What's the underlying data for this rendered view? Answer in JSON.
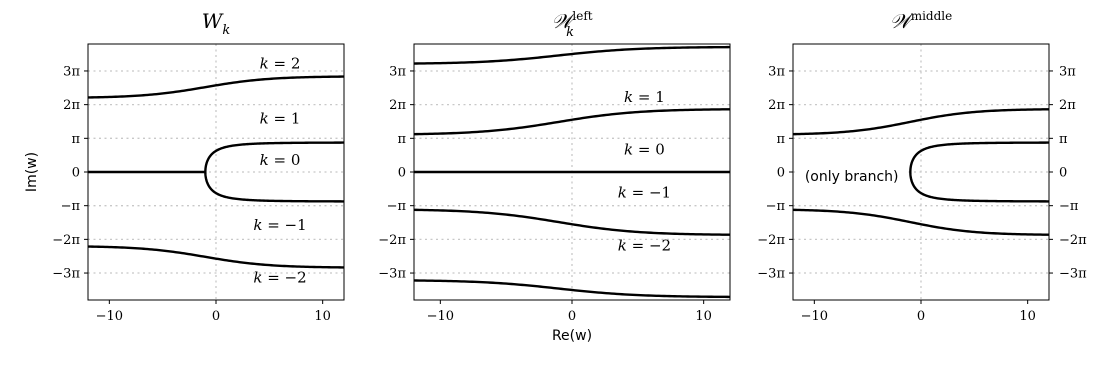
{
  "chart_data": [
    {
      "type": "line",
      "title": "W_k",
      "title_math": {
        "base": "W",
        "sub": "k",
        "sup": ""
      },
      "xlim": [
        -12,
        12
      ],
      "ylim": [
        -11.94,
        11.94
      ],
      "xticks": [
        -10,
        0,
        10
      ],
      "xtick_labels": [
        "−10",
        "0",
        "10"
      ],
      "yticks": [
        -9.4248,
        -6.2832,
        -3.1416,
        0,
        3.1416,
        6.2832,
        9.4248
      ],
      "ytick_labels": [
        "−3π",
        "−2π",
        "−π",
        "0",
        "π",
        "2π",
        "3π"
      ],
      "ytick_side": "left",
      "ylabel": "Im(w)",
      "xlabel": "",
      "grid": true,
      "series": [
        {
          "kind": "branch_cut",
          "center": 2,
          "scale": 0.9,
          "x": [
            -12,
            -8,
            -4,
            0,
            4,
            8,
            12
          ],
          "y": [
            6.93,
            7.19,
            7.51,
            7.95,
            8.36,
            8.68,
            8.9
          ]
        },
        {
          "kind": "branch_cut",
          "center": -2,
          "scale": 0.9,
          "x": [
            -12,
            -8,
            -4,
            0,
            4,
            8,
            12
          ],
          "y": [
            -6.93,
            -7.19,
            -7.51,
            -7.95,
            -8.36,
            -8.68,
            -8.9
          ]
        },
        {
          "kind": "half_line",
          "x": [
            -12,
            -1
          ],
          "y": [
            0,
            0
          ]
        },
        {
          "kind": "parabola_branch",
          "x": [
            -1,
            0,
            2,
            4,
            8,
            12
          ],
          "y": [
            0,
            1.4,
            2.05,
            2.3,
            2.6,
            2.75
          ]
        }
      ],
      "annotations": [
        {
          "text": "k = 2",
          "x": 6,
          "y": 10.1,
          "style": "math"
        },
        {
          "text": "k = 1",
          "x": 6,
          "y": 5.0,
          "style": "math"
        },
        {
          "text": "k = 0",
          "x": 6,
          "y": 1.1,
          "style": "math"
        },
        {
          "text": "k = −1",
          "x": 6,
          "y": -4.95,
          "style": "math"
        },
        {
          "text": "k = −2",
          "x": 6,
          "y": -9.85,
          "style": "math"
        }
      ]
    },
    {
      "type": "line",
      "title": "𝒲_k^left",
      "title_math": {
        "base": "𝒲",
        "sub": "k",
        "sup": "left"
      },
      "xlim": [
        -12,
        12
      ],
      "ylim": [
        -11.94,
        11.94
      ],
      "xticks": [
        -10,
        0,
        10
      ],
      "xtick_labels": [
        "−10",
        "0",
        "10"
      ],
      "yticks": [
        -9.4248,
        -6.2832,
        -3.1416,
        0,
        3.1416,
        6.2832,
        9.4248
      ],
      "ytick_labels": [
        "−3π",
        "−2π",
        "−π",
        "0",
        "π",
        "2π",
        "3π"
      ],
      "ytick_side": "left",
      "ylabel": "",
      "xlabel": "Re(w)",
      "grid": true,
      "series": [
        {
          "kind": "branch_cut",
          "center": 3,
          "scale": 0.75,
          "x": [
            -12,
            -8,
            -4,
            0,
            4,
            8,
            12
          ],
          "y": [
            10.1,
            10.35,
            10.6,
            10.9,
            11.2,
            11.45,
            11.65
          ]
        },
        {
          "kind": "branch_cut",
          "center": 1,
          "scale": 1.15,
          "x": [
            -12,
            -8,
            -4,
            0,
            4,
            8,
            12
          ],
          "y": [
            3.5,
            3.7,
            4.1,
            4.8,
            5.4,
            5.7,
            5.85
          ]
        },
        {
          "kind": "line",
          "x": [
            -12,
            12
          ],
          "y": [
            0,
            0
          ]
        },
        {
          "kind": "branch_cut",
          "center": -1,
          "scale": 1.15,
          "x": [
            -12,
            -8,
            -4,
            0,
            4,
            8,
            12
          ],
          "y": [
            -3.5,
            -3.7,
            -4.1,
            -4.8,
            -5.4,
            -5.7,
            -5.85
          ]
        },
        {
          "kind": "branch_cut",
          "center": -3,
          "scale": 0.75,
          "x": [
            -12,
            -8,
            -4,
            0,
            4,
            8,
            12
          ],
          "y": [
            -10.1,
            -10.35,
            -10.6,
            -10.9,
            -11.2,
            -11.45,
            -11.65
          ]
        }
      ],
      "annotations": [
        {
          "text": "k = 1",
          "x": 5.5,
          "y": 7.0,
          "style": "math"
        },
        {
          "text": "k = 0",
          "x": 5.5,
          "y": 2.1,
          "style": "math"
        },
        {
          "text": "k = −1",
          "x": 5.5,
          "y": -1.9,
          "style": "math"
        },
        {
          "text": "k = −2",
          "x": 5.5,
          "y": -6.85,
          "style": "math"
        }
      ]
    },
    {
      "type": "line",
      "title": "𝒲^middle",
      "title_math": {
        "base": "𝒲",
        "sub": "",
        "sup": "middle"
      },
      "xlim": [
        -12,
        12
      ],
      "ylim": [
        -11.94,
        11.94
      ],
      "xticks": [
        -10,
        0,
        10
      ],
      "xtick_labels": [
        "−10",
        "0",
        "10"
      ],
      "yticks": [
        -9.4248,
        -6.2832,
        -3.1416,
        0,
        3.1416,
        6.2832,
        9.4248
      ],
      "ytick_labels": [
        "−3π",
        "−2π",
        "−π",
        "0",
        "π",
        "2π",
        "3π"
      ],
      "ytick_side": "both",
      "ylabel": "",
      "xlabel": "",
      "grid": true,
      "series": [
        {
          "kind": "branch_cut",
          "center": 1,
          "scale": 1.15,
          "x": [
            -12,
            -8,
            -4,
            0,
            4,
            8,
            12
          ],
          "y": [
            3.5,
            3.7,
            4.1,
            4.8,
            5.4,
            5.7,
            5.85
          ]
        },
        {
          "kind": "branch_cut",
          "center": -1,
          "scale": 1.15,
          "x": [
            -12,
            -8,
            -4,
            0,
            4,
            8,
            12
          ],
          "y": [
            -3.5,
            -3.7,
            -4.1,
            -4.8,
            -5.4,
            -5.7,
            -5.85
          ]
        },
        {
          "kind": "parabola_branch",
          "x": [
            -1,
            0,
            2,
            4,
            8,
            12
          ],
          "y": [
            0,
            1.4,
            2.05,
            2.3,
            2.6,
            2.75
          ]
        }
      ],
      "annotations": [
        {
          "text": "(only branch)",
          "x": -6.5,
          "y": -0.35,
          "style": "sans"
        }
      ]
    }
  ]
}
